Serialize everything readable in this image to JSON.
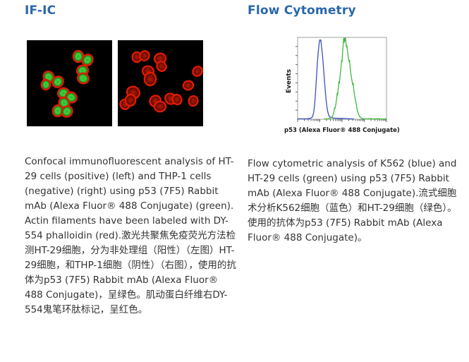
{
  "colors": {
    "heading": "#2a66ad",
    "body_text": "#333333",
    "panel_bg": "#000000",
    "cell_ring_red": "#e01b00",
    "flow_blue": "#3a50c2",
    "flow_green": "#3dbb3d",
    "plot_border": "#9aa59a"
  },
  "left_section": {
    "heading": "IF-IC",
    "caption": "Confocal immunofluorescent analysis of HT-29 cells (positive) (left) and THP-1 cells (negative) (right) using p53 (7F5) Rabbit mAb (Alexa Fluor® 488 Conjugate) (green). Actin filaments have been labeled with DY-554 phalloidin (red).激光共聚焦免疫荧光方法检测HT-29细胞，分为非处理组（阳性）（左图）HT-29细胞，和THP-1细胞（阴性）（右图），使用的抗体为p53 (7F5) Rabbit mAb (Alexa Fluor® 488 Conjugate)，呈绿色。肌动蛋白纤维右DY-554鬼笔环肽标记，呈红色。",
    "panels": [
      {
        "name": "HT-29 cells (positive): green p53 staining with red actin rings",
        "type": "positive",
        "cells": [
          [
            73,
            23,
            8
          ],
          [
            86,
            28,
            8
          ],
          [
            79,
            43,
            8
          ],
          [
            80,
            54,
            8
          ],
          [
            31,
            52,
            8
          ],
          [
            27,
            63,
            7
          ],
          [
            44,
            59,
            8
          ],
          [
            52,
            75,
            8
          ],
          [
            63,
            81,
            8
          ],
          [
            53,
            89,
            8
          ],
          [
            44,
            100,
            8
          ],
          [
            57,
            101,
            8
          ]
        ]
      },
      {
        "name": "THP-1 cells (negative): red actin only",
        "type": "negative",
        "cells": [
          [
            27,
            24,
            7
          ],
          [
            38,
            22,
            7
          ],
          [
            60,
            26,
            8
          ],
          [
            43,
            44,
            8
          ],
          [
            62,
            37,
            7
          ],
          [
            46,
            55,
            9
          ],
          [
            113,
            44,
            7
          ],
          [
            100,
            64,
            7
          ],
          [
            22,
            74,
            9
          ],
          [
            10,
            91,
            7
          ],
          [
            18,
            85,
            8
          ],
          [
            53,
            86,
            8
          ],
          [
            60,
            94,
            8
          ],
          [
            75,
            83,
            8
          ],
          [
            84,
            84,
            7
          ],
          [
            107,
            86,
            7
          ]
        ]
      }
    ]
  },
  "right_section": {
    "heading": "Flow Cytometry",
    "caption": "Flow cytometric analysis of K562 (blue) and HT-29 cells (green) using p53 (7F5) Rabbit mAb (Alexa Fluor® 488 Conjugate).流式细胞术分析K562细胞（蓝色）和HT-29细胞（绿色）。使用的抗体为p53 (7F5) Rabbit mAb (Alexa Fluor® 488 Conjugate)。",
    "chart_ref": "chart_data"
  },
  "chart_data": {
    "type": "line",
    "title": "",
    "xlabel": "p53 (Alexa Fluor® 488 Conjugate)",
    "ylabel": "Events",
    "x_tick_labels": [],
    "y_tick_labels": [],
    "legend": "none (colors described in caption)",
    "series": [
      {
        "name": "K562 (blue)",
        "color": "#3a50c2",
        "points": [
          [
            0,
            0.5
          ],
          [
            10,
            0.5
          ],
          [
            14,
            1
          ],
          [
            16,
            2
          ],
          [
            17,
            4
          ],
          [
            18,
            8
          ],
          [
            19,
            16
          ],
          [
            20,
            30
          ],
          [
            21,
            48
          ],
          [
            22,
            65
          ],
          [
            23,
            80
          ],
          [
            24,
            90
          ],
          [
            24.5,
            95
          ],
          [
            25,
            97
          ],
          [
            25.5,
            96
          ],
          [
            26,
            97
          ],
          [
            26.5,
            93
          ],
          [
            27,
            88
          ],
          [
            28,
            78
          ],
          [
            29,
            65
          ],
          [
            30,
            50
          ],
          [
            31,
            36
          ],
          [
            32,
            24
          ],
          [
            33,
            15
          ],
          [
            34,
            9
          ],
          [
            35,
            5
          ],
          [
            36,
            3
          ],
          [
            38,
            2
          ],
          [
            40,
            1.5
          ],
          [
            45,
            1.2
          ],
          [
            50,
            1
          ],
          [
            55,
            0.8
          ],
          [
            60,
            0.5
          ],
          [
            63,
            0.3
          ]
        ]
      },
      {
        "name": "HT-29 (green)",
        "color": "#3dbb3d",
        "points": [
          [
            30,
            0.3
          ],
          [
            34,
            0.5
          ],
          [
            36,
            1
          ],
          [
            38,
            2
          ],
          [
            39,
            3
          ],
          [
            40,
            6
          ],
          [
            41,
            10
          ],
          [
            41.5,
            14
          ],
          [
            42,
            13
          ],
          [
            43,
            18
          ],
          [
            44,
            26
          ],
          [
            44.5,
            32
          ],
          [
            45,
            30
          ],
          [
            46,
            40
          ],
          [
            46.5,
            46
          ],
          [
            47,
            44
          ],
          [
            48,
            55
          ],
          [
            49,
            65
          ],
          [
            49.5,
            72
          ],
          [
            50,
            70
          ],
          [
            50.5,
            80
          ],
          [
            51,
            88
          ],
          [
            51.5,
            95
          ],
          [
            52,
            99
          ],
          [
            52.5,
            94
          ],
          [
            53,
            99
          ],
          [
            53.5,
            96
          ],
          [
            54,
            99
          ],
          [
            54.5,
            92
          ],
          [
            55,
            88
          ],
          [
            55.5,
            90
          ],
          [
            56,
            84
          ],
          [
            57,
            76
          ],
          [
            58,
            70
          ],
          [
            58.5,
            72
          ],
          [
            59,
            64
          ],
          [
            60,
            55
          ],
          [
            61,
            48
          ],
          [
            62,
            42
          ],
          [
            62.5,
            44
          ],
          [
            63,
            38
          ],
          [
            64,
            30
          ],
          [
            65,
            24
          ],
          [
            66,
            18
          ],
          [
            67,
            12
          ],
          [
            68,
            8
          ],
          [
            69,
            5
          ],
          [
            70,
            3
          ],
          [
            71,
            2
          ],
          [
            72,
            1
          ],
          [
            74,
            0.8
          ],
          [
            78,
            0.5
          ],
          [
            82,
            0.8
          ],
          [
            85,
            0.4
          ],
          [
            90,
            0.6
          ],
          [
            95,
            0.3
          ],
          [
            100,
            0.4
          ]
        ]
      }
    ]
  }
}
